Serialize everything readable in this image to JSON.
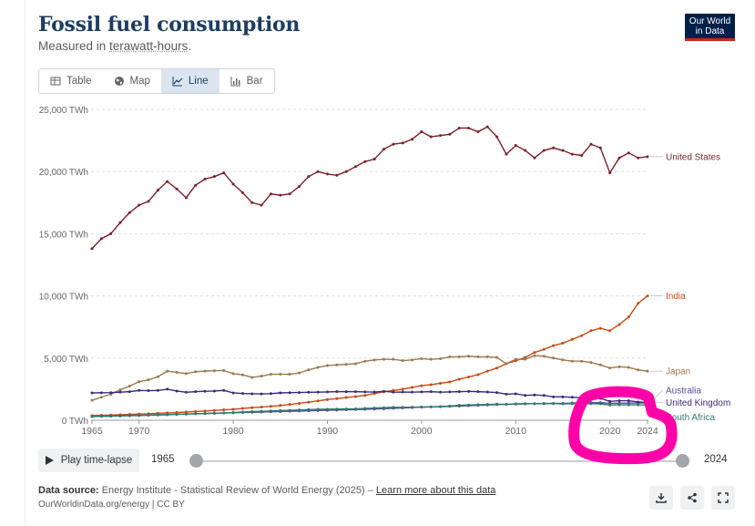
{
  "header": {
    "title": "Fossil fuel consumption",
    "subtitle_prefix": "Measured in ",
    "subtitle_unit": "terawatt-hours",
    "subtitle_suffix": ".",
    "logo_line1": "Our World",
    "logo_line2": "in Data"
  },
  "tabs": [
    {
      "label": "Table",
      "icon": "table-icon"
    },
    {
      "label": "Map",
      "icon": "globe-icon"
    },
    {
      "label": "Line",
      "icon": "line-chart-icon",
      "active": true
    },
    {
      "label": "Bar",
      "icon": "bar-chart-icon"
    }
  ],
  "timeline": {
    "play_label": "Play time-lapse",
    "start_year": "1965",
    "end_year": "2024"
  },
  "footer": {
    "source_label": "Data source:",
    "source_text": "Energy Institute - Statistical Review of World Energy (2025) –",
    "learn_more": "Learn more about this data",
    "credit": "OurWorldinData.org/energy | CC BY"
  },
  "colors": {
    "united_states": "#7a1f2b",
    "india": "#c64a15",
    "japan": "#9b7a4e",
    "australia": "#5b4a9c",
    "united_kingdom": "#3c2a7a",
    "south_africa": "#2f7a6a",
    "annotation": "#ff00a8"
  },
  "chart_data": {
    "type": "line",
    "title": "Fossil fuel consumption",
    "ylabel": "TWh",
    "ylim": [
      0,
      25000
    ],
    "yticks": [
      {
        "value": 0,
        "label": "0 TWh"
      },
      {
        "value": 5000,
        "label": "5,000 TWh"
      },
      {
        "value": 10000,
        "label": "10,000 TWh"
      },
      {
        "value": 15000,
        "label": "15,000 TWh"
      },
      {
        "value": 20000,
        "label": "20,000 TWh"
      },
      {
        "value": 25000,
        "label": "25,000 TWh"
      }
    ],
    "xticks": [
      1965,
      1970,
      1980,
      1990,
      2000,
      2010,
      2020,
      2024
    ],
    "x": [
      1965,
      1966,
      1967,
      1968,
      1969,
      1970,
      1971,
      1972,
      1973,
      1974,
      1975,
      1976,
      1977,
      1978,
      1979,
      1980,
      1981,
      1982,
      1983,
      1984,
      1985,
      1986,
      1987,
      1988,
      1989,
      1990,
      1991,
      1992,
      1993,
      1994,
      1995,
      1996,
      1997,
      1998,
      1999,
      2000,
      2001,
      2002,
      2003,
      2004,
      2005,
      2006,
      2007,
      2008,
      2009,
      2010,
      2011,
      2012,
      2013,
      2014,
      2015,
      2016,
      2017,
      2018,
      2019,
      2020,
      2021,
      2022,
      2023,
      2024
    ],
    "series": [
      {
        "name": "United States",
        "label_offset": 0,
        "values": [
          13800,
          14600,
          15000,
          15900,
          16700,
          17300,
          17600,
          18500,
          19200,
          18600,
          17900,
          18900,
          19400,
          19600,
          19900,
          19000,
          18300,
          17500,
          17300,
          18200,
          18100,
          18200,
          18800,
          19600,
          20000,
          19800,
          19700,
          20000,
          20400,
          20800,
          21000,
          21800,
          22200,
          22300,
          22600,
          23200,
          22800,
          22900,
          23000,
          23500,
          23500,
          23200,
          23600,
          22800,
          21400,
          22100,
          21700,
          21100,
          21700,
          21900,
          21700,
          21400,
          21300,
          22200,
          21900,
          19900,
          21100,
          21500,
          21100,
          21200
        ]
      },
      {
        "name": "India",
        "label_offset": 0,
        "values": [
          380,
          400,
          420,
          440,
          470,
          500,
          520,
          560,
          590,
          620,
          660,
          700,
          740,
          790,
          840,
          880,
          950,
          1010,
          1060,
          1120,
          1190,
          1270,
          1360,
          1450,
          1560,
          1660,
          1740,
          1830,
          1910,
          2000,
          2150,
          2290,
          2400,
          2500,
          2640,
          2780,
          2860,
          2970,
          3080,
          3300,
          3480,
          3670,
          3950,
          4200,
          4550,
          4780,
          5050,
          5450,
          5700,
          6000,
          6200,
          6500,
          6800,
          7200,
          7400,
          7200,
          7700,
          8300,
          9400,
          10000
        ]
      },
      {
        "name": "Japan",
        "label_offset": 0,
        "values": [
          1600,
          1850,
          2100,
          2450,
          2750,
          3100,
          3250,
          3500,
          3950,
          3850,
          3750,
          3900,
          3950,
          3980,
          4000,
          3750,
          3650,
          3450,
          3550,
          3700,
          3700,
          3700,
          3800,
          4050,
          4250,
          4400,
          4450,
          4500,
          4550,
          4750,
          4850,
          4900,
          4900,
          4800,
          4850,
          4950,
          4900,
          4950,
          5100,
          5100,
          5150,
          5100,
          5100,
          5050,
          4550,
          4900,
          4900,
          5200,
          5150,
          5000,
          4850,
          4750,
          4750,
          4650,
          4450,
          4200,
          4300,
          4250,
          4050,
          3950
        ]
      },
      {
        "name": "Australia",
        "label_offset": -14,
        "values": [
          300,
          320,
          340,
          360,
          380,
          400,
          420,
          440,
          460,
          480,
          500,
          520,
          540,
          560,
          580,
          600,
          620,
          640,
          660,
          680,
          700,
          720,
          740,
          760,
          780,
          800,
          820,
          840,
          860,
          880,
          900,
          930,
          960,
          990,
          1020,
          1050,
          1070,
          1090,
          1110,
          1140,
          1170,
          1200,
          1230,
          1260,
          1280,
          1300,
          1320,
          1340,
          1350,
          1360,
          1360,
          1380,
          1400,
          1410,
          1420,
          1360,
          1370,
          1380,
          1390,
          1400
        ]
      },
      {
        "name": "United Kingdom",
        "label_offset": 0,
        "values": [
          2200,
          2210,
          2220,
          2260,
          2300,
          2400,
          2380,
          2400,
          2500,
          2350,
          2250,
          2300,
          2330,
          2350,
          2400,
          2200,
          2150,
          2130,
          2120,
          2140,
          2200,
          2220,
          2230,
          2250,
          2260,
          2280,
          2300,
          2300,
          2300,
          2280,
          2270,
          2330,
          2260,
          2270,
          2260,
          2280,
          2300,
          2260,
          2280,
          2300,
          2320,
          2300,
          2270,
          2230,
          2100,
          2130,
          2000,
          2030,
          2000,
          1880,
          1880,
          1850,
          1820,
          1810,
          1760,
          1520,
          1570,
          1570,
          1470,
          1430
        ]
      },
      {
        "name": "South Africa",
        "label_offset": 13,
        "values": [
          300,
          310,
          320,
          340,
          360,
          380,
          400,
          420,
          440,
          470,
          490,
          520,
          540,
          560,
          590,
          620,
          660,
          700,
          720,
          750,
          780,
          800,
          830,
          860,
          880,
          890,
          900,
          910,
          920,
          950,
          980,
          1010,
          1040,
          1040,
          1050,
          1070,
          1080,
          1100,
          1150,
          1200,
          1230,
          1250,
          1270,
          1300,
          1280,
          1320,
          1330,
          1330,
          1330,
          1340,
          1320,
          1330,
          1340,
          1330,
          1320,
          1220,
          1240,
          1240,
          1240,
          1220
        ]
      }
    ]
  }
}
